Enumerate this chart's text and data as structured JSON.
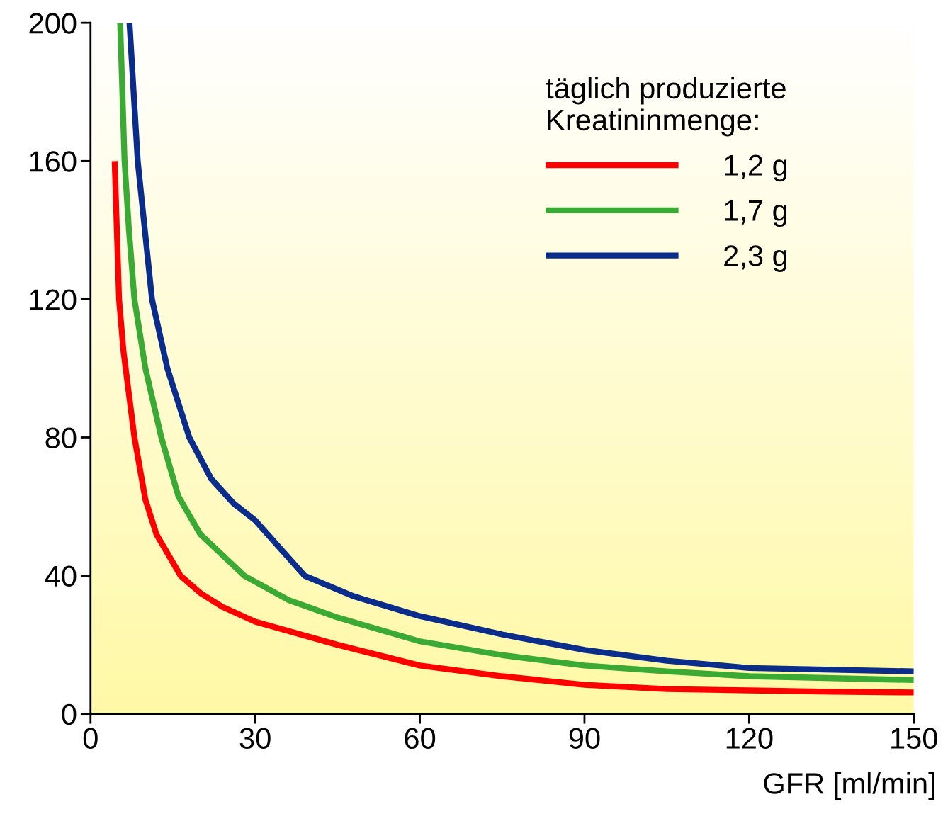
{
  "chart_data": {
    "type": "line",
    "xlabel": "GFR [ml/min]",
    "legend_title": "täglich produzierte\nKreatininmenge:",
    "xlim": [
      0,
      150
    ],
    "xticks": [
      0,
      30,
      60,
      90,
      120,
      150
    ],
    "ylim": [
      0,
      200
    ],
    "yticks": [
      0,
      40,
      80,
      120,
      160,
      200
    ],
    "grid": false,
    "legend": "top right",
    "marker": "none",
    "line_style": "solid",
    "series": [
      {
        "name": "1,2 g",
        "color": "#ff0000",
        "x": [
          4.4,
          5.2,
          6,
          8.0,
          10,
          12,
          16.4,
          20,
          24,
          30,
          45,
          60,
          75,
          90,
          105,
          120,
          135,
          150
        ],
        "values": [
          160,
          120,
          105,
          80,
          62,
          52,
          40,
          35,
          31,
          26.7,
          20,
          14,
          10.9,
          8.4,
          7.2,
          6.8,
          6.4,
          6.2
        ]
      },
      {
        "name": "1,7 g",
        "color": "#3aaa35",
        "x": [
          5.4,
          6.2,
          7,
          8.0,
          10,
          12.9,
          16,
          20,
          28,
          36,
          45,
          60,
          75,
          90,
          105,
          120,
          150
        ],
        "values": [
          200,
          160,
          140,
          120,
          100,
          80,
          63,
          52,
          40,
          33,
          27.9,
          21,
          17,
          14,
          12.3,
          10.9,
          9.8
        ]
      },
      {
        "name": "2,3 g",
        "color": "#0a2d8c",
        "x": [
          7.1,
          8.6,
          11.2,
          14,
          18,
          22,
          26,
          30,
          39,
          48,
          60,
          75,
          90,
          105,
          120,
          150
        ],
        "values": [
          200,
          160,
          120,
          100,
          80,
          68,
          61,
          56,
          40,
          34,
          28.3,
          23,
          18.5,
          15.4,
          13.3,
          12.3
        ]
      }
    ]
  }
}
